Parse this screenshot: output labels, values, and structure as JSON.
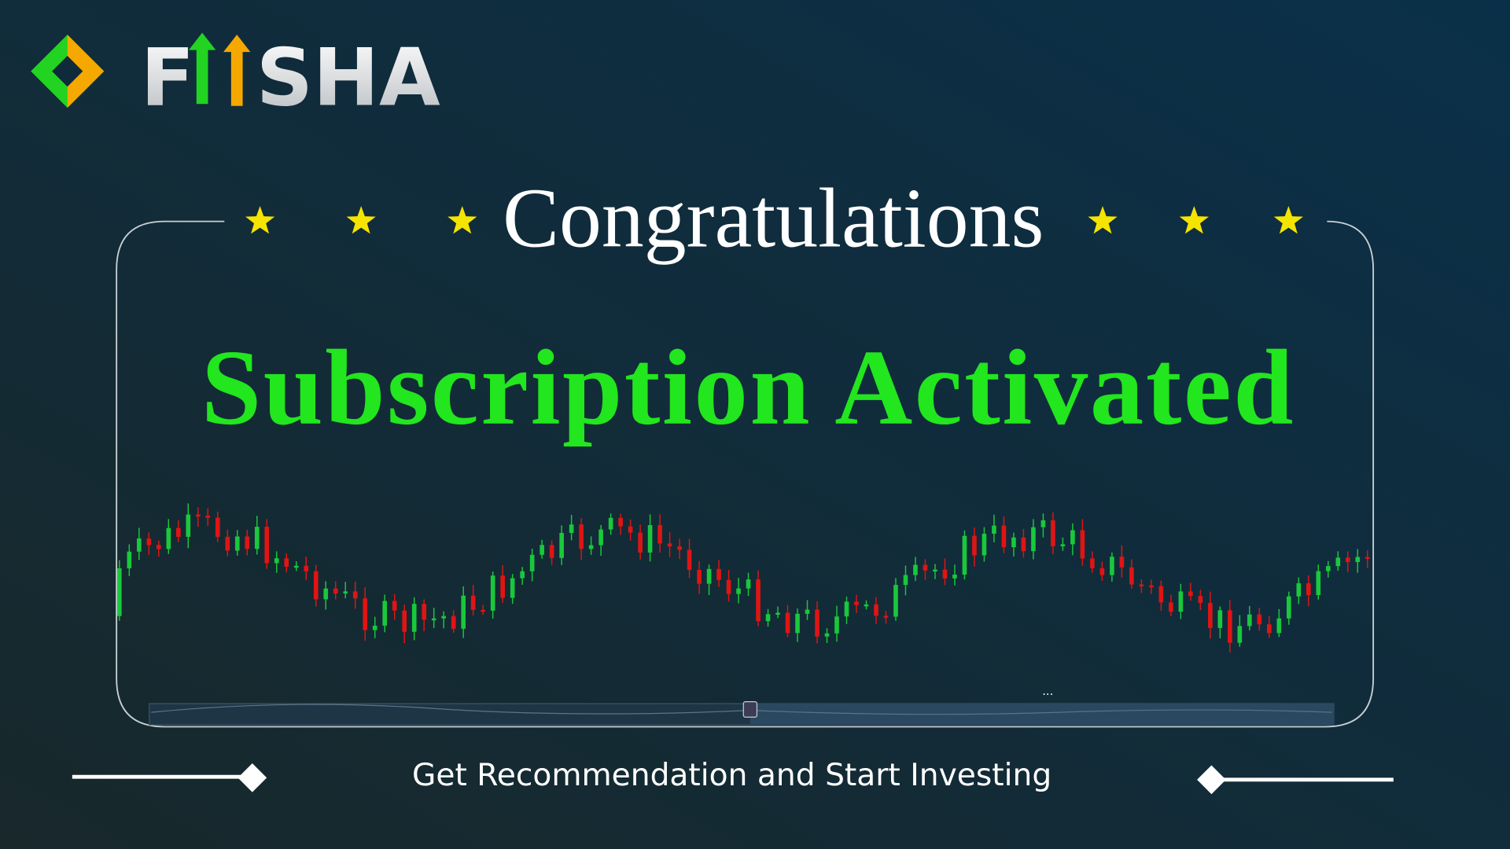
{
  "brand": {
    "prefix": "F",
    "suffix": "SHA"
  },
  "title": "Congratulations",
  "headline": "Subscription Activated",
  "tagline": "Get Recommendation and Start Investing"
}
